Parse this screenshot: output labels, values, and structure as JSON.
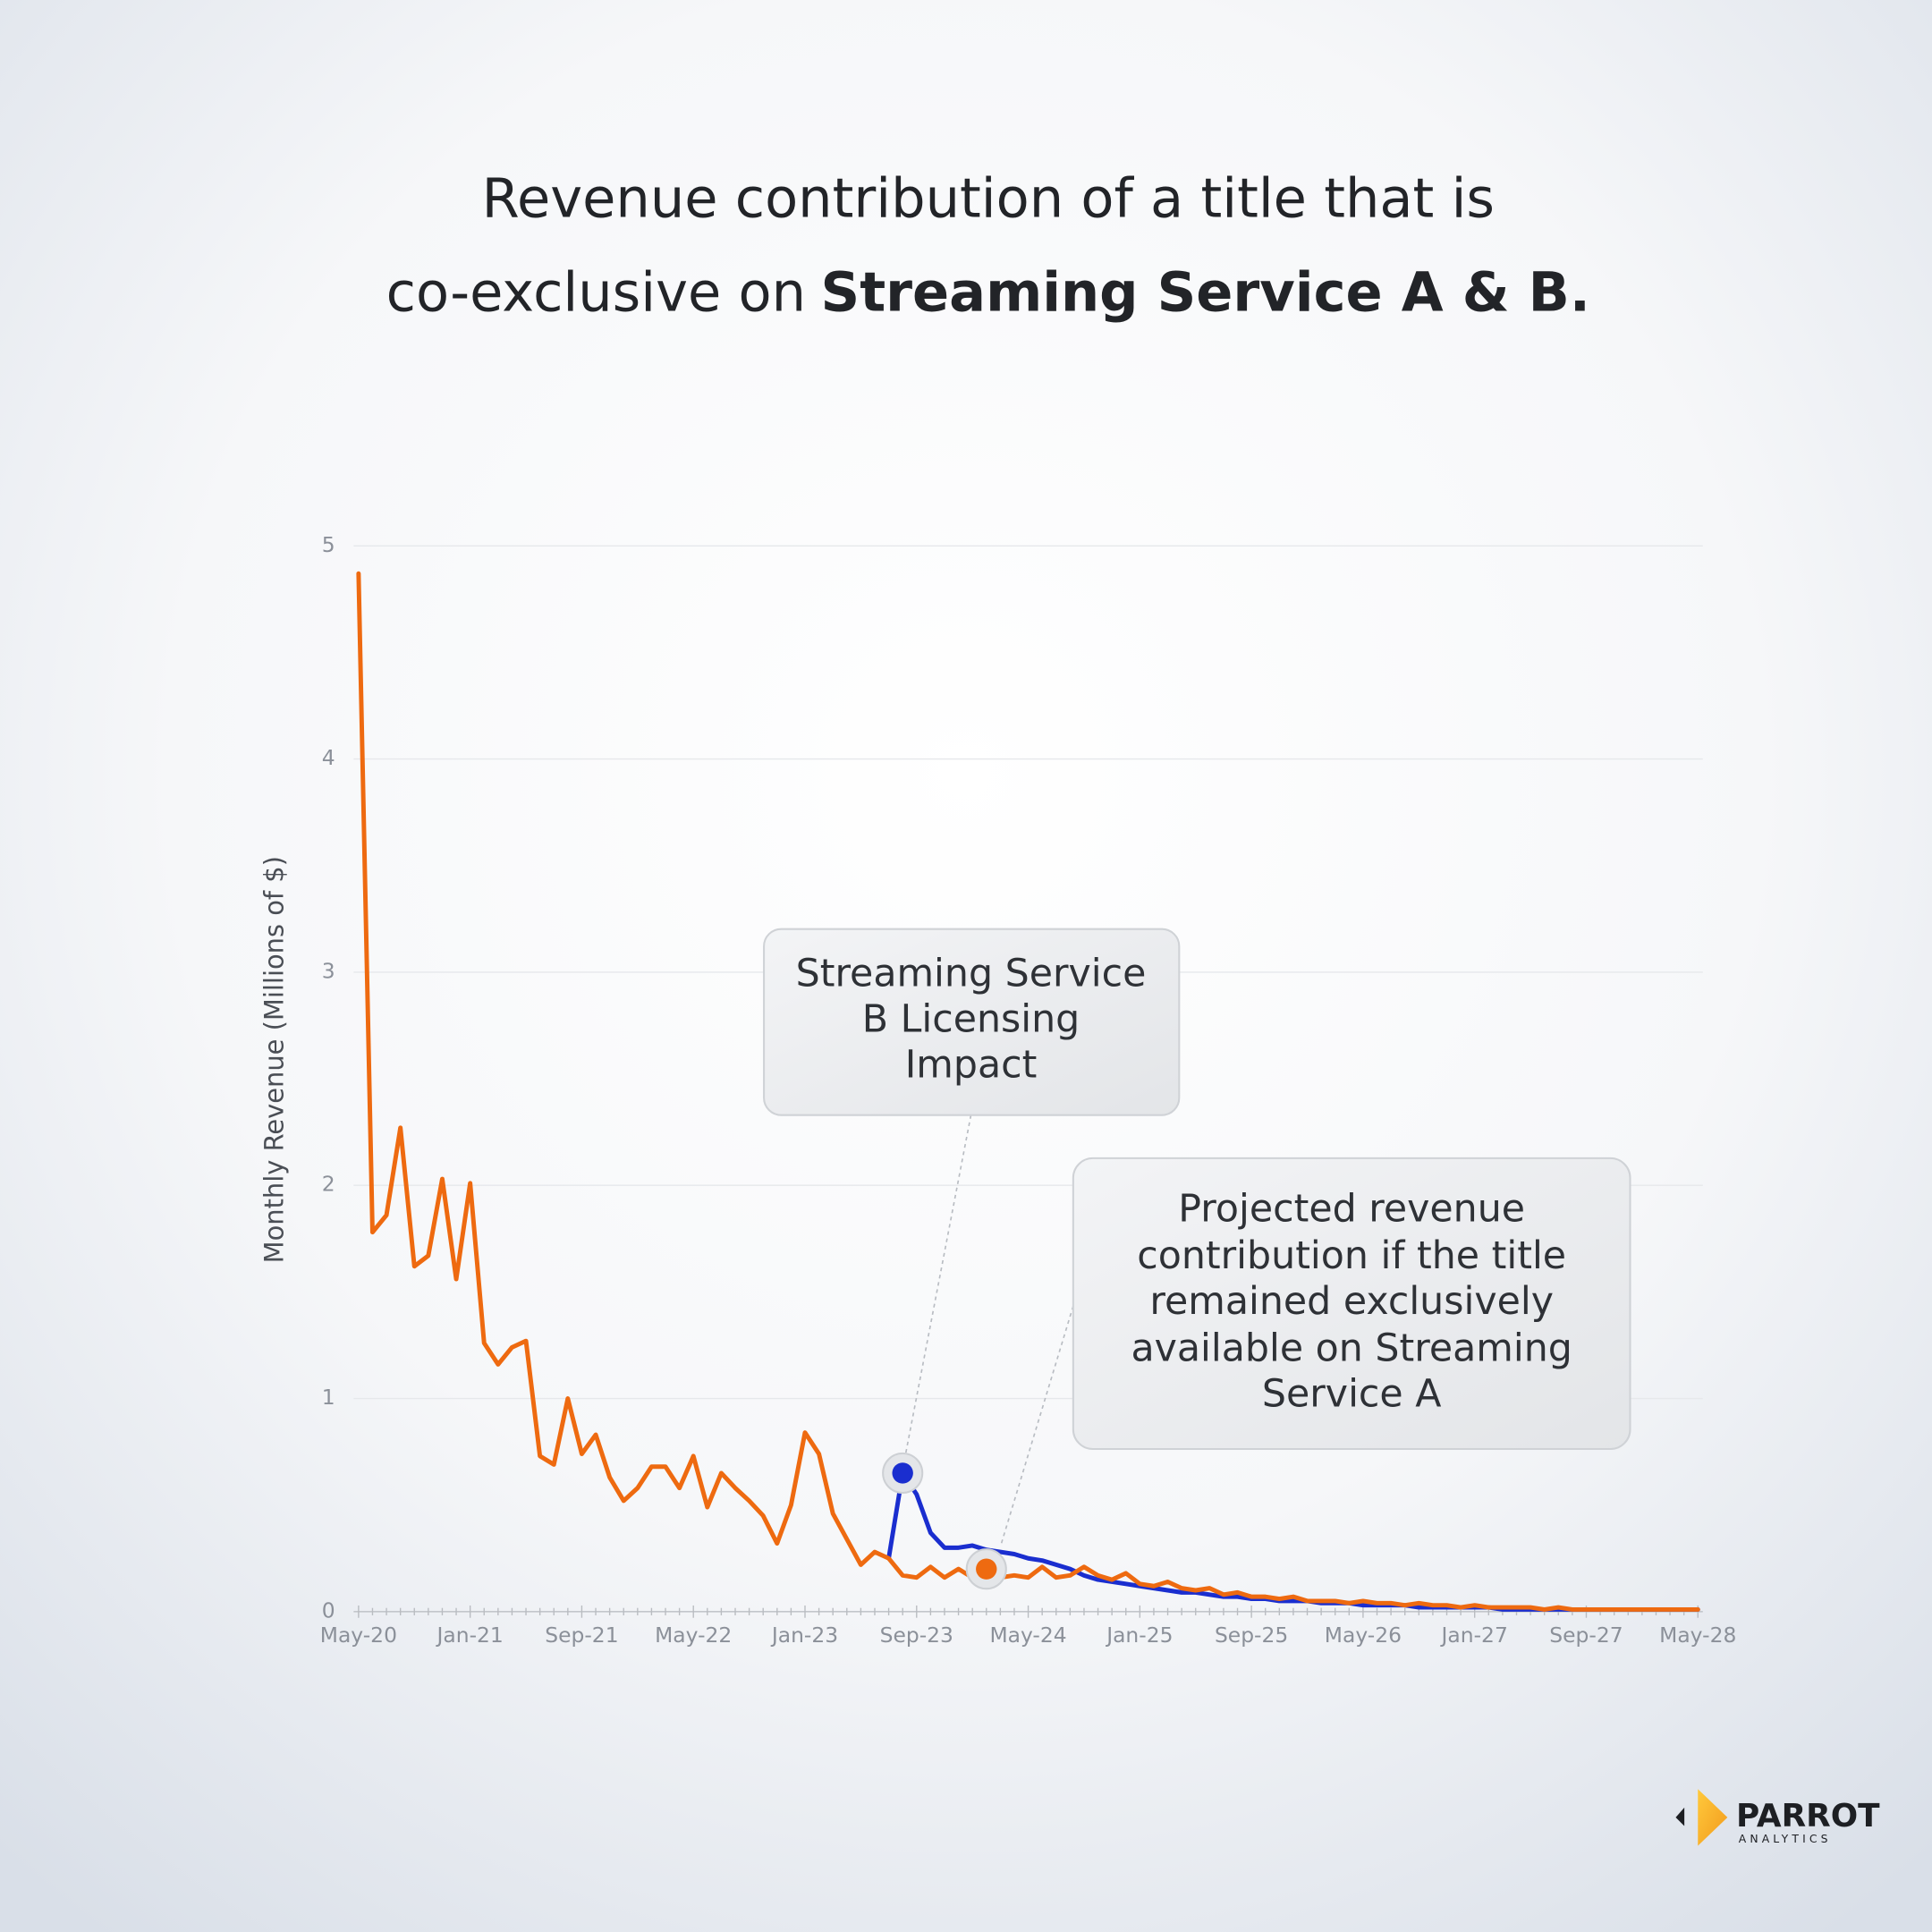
{
  "chart_data": {
    "type": "line",
    "title": [
      "Revenue contribution of a title that is",
      "co-exclusive on"
    ],
    "title_emphasis": "Streaming Service A & B.",
    "y_label": "Monthly Revenue (Millions of $)",
    "categories": [
      "May-20",
      null,
      null,
      null,
      null,
      null,
      null,
      null,
      "Jan-21",
      null,
      null,
      null,
      null,
      null,
      null,
      null,
      "Sep-21",
      null,
      null,
      null,
      null,
      null,
      null,
      null,
      "May-22",
      null,
      null,
      null,
      null,
      null,
      null,
      null,
      "Jan-23",
      null,
      null,
      null,
      null,
      null,
      null,
      null,
      "Sep-23",
      null,
      null,
      null,
      null,
      null,
      null,
      null,
      "May-24",
      null,
      null,
      null,
      null,
      null,
      null,
      null,
      "Jan-25",
      null,
      null,
      null,
      null,
      null,
      null,
      null,
      "Sep-25",
      null,
      null,
      null,
      null,
      null,
      null,
      null,
      "May-26",
      null,
      null,
      null,
      null,
      null,
      null,
      null,
      "Jan-27",
      null,
      null,
      null,
      null,
      null,
      null,
      null,
      "Sep-27",
      null,
      null,
      null,
      null,
      null,
      null,
      null,
      "May-28"
    ],
    "series": [
      {
        "color": "#1a2ecf",
        "values": [
          null,
          null,
          null,
          null,
          null,
          null,
          null,
          null,
          null,
          null,
          null,
          null,
          null,
          null,
          null,
          null,
          null,
          null,
          null,
          null,
          null,
          null,
          null,
          null,
          null,
          null,
          null,
          null,
          null,
          null,
          null,
          null,
          null,
          null,
          null,
          null,
          null,
          null,
          0.25,
          0.65,
          0.55,
          0.37,
          0.3,
          0.3,
          0.31,
          0.29,
          0.28,
          0.27,
          0.25,
          0.24,
          0.22,
          0.2,
          0.17,
          0.15,
          0.14,
          0.13,
          0.12,
          0.11,
          0.1,
          0.09,
          0.09,
          0.08,
          0.07,
          0.07,
          0.06,
          0.06,
          0.05,
          0.05,
          0.05,
          0.04,
          0.04,
          0.04,
          0.03,
          0.03,
          0.03,
          0.03,
          0.02,
          0.02,
          0.02,
          0.02,
          0.02,
          0.02,
          0.01,
          0.01,
          0.01,
          0.01,
          0.01,
          0.01,
          0.01,
          0.01,
          0.01,
          0.01,
          0.01,
          0.01,
          0.01,
          0.01,
          0.01
        ]
      },
      {
        "color": "#ee6a10",
        "values": [
          4.87,
          1.78,
          1.86,
          2.27,
          1.62,
          1.67,
          2.03,
          1.56,
          2.01,
          1.26,
          1.16,
          1.24,
          1.27,
          0.73,
          0.69,
          1.0,
          0.74,
          0.83,
          0.63,
          0.52,
          0.58,
          0.68,
          0.68,
          0.58,
          0.73,
          0.49,
          0.65,
          0.58,
          0.52,
          0.45,
          0.32,
          0.5,
          0.84,
          0.74,
          0.46,
          0.34,
          0.22,
          0.28,
          0.25,
          0.17,
          0.16,
          0.21,
          0.16,
          0.2,
          0.16,
          0.2,
          0.16,
          0.17,
          0.16,
          0.21,
          0.16,
          0.17,
          0.21,
          0.17,
          0.15,
          0.18,
          0.13,
          0.12,
          0.14,
          0.11,
          0.1,
          0.11,
          0.08,
          0.09,
          0.07,
          0.07,
          0.06,
          0.07,
          0.05,
          0.05,
          0.05,
          0.04,
          0.05,
          0.04,
          0.04,
          0.03,
          0.04,
          0.03,
          0.03,
          0.02,
          0.03,
          0.02,
          0.02,
          0.02,
          0.02,
          0.01,
          0.02,
          0.01,
          0.01,
          0.01,
          0.01,
          0.01,
          0.01,
          0.01,
          0.01,
          0.01,
          0.01
        ]
      }
    ],
    "ylim": [
      0,
      5
    ],
    "yticks": [
      0,
      1,
      2,
      3,
      4,
      5
    ],
    "grid": true,
    "annotations": [
      [
        "Streaming Service",
        "B Licensing",
        "Impact"
      ],
      [
        "Projected revenue",
        "contribution if the title",
        "remained exclusively",
        "available on Streaming",
        "Service A"
      ]
    ]
  },
  "logo": {
    "name": "PARROT",
    "tagline": "ANALYTICS"
  }
}
